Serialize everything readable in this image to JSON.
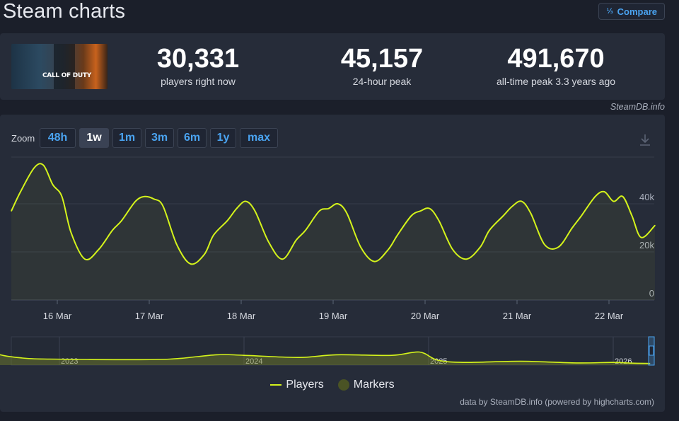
{
  "page": {
    "title": "Steam charts"
  },
  "compare": {
    "icon": "⅓",
    "label": "Compare"
  },
  "game": {
    "logo_text": "CALL OF DUTY",
    "logo_icon": "game-cover-image"
  },
  "stats": [
    {
      "value": "30,331",
      "label": "players right now"
    },
    {
      "value": "45,157",
      "label": "24-hour peak"
    },
    {
      "value": "491,670",
      "label": "all-time peak 3.3 years ago"
    }
  ],
  "attribution": "SteamDB.info",
  "zoom": {
    "label": "Zoom",
    "options": [
      "48h",
      "1w",
      "1m",
      "3m",
      "6m",
      "1y",
      "max"
    ],
    "selected": "1w"
  },
  "legend": {
    "players": "Players",
    "markers": "Markers"
  },
  "credits": "data by SteamDB.info (powered by highcharts.com)",
  "colors": {
    "line": "#d4f31b",
    "accent": "#4aa3f0",
    "marker": "#4a5324"
  },
  "chart_data": [
    {
      "type": "line",
      "title": "",
      "x_axis": {
        "categories": [
          "16 Mar",
          "17 Mar",
          "18 Mar",
          "19 Mar",
          "20 Mar",
          "21 Mar",
          "22 Mar"
        ]
      },
      "y_axis": {
        "ticks": [
          "0",
          "20k",
          "40k"
        ],
        "tick_values": [
          0,
          20000,
          40000
        ],
        "range": [
          0,
          60000
        ],
        "position": "right"
      },
      "grid": true,
      "series": [
        {
          "name": "Players",
          "x_day": [
            15.5,
            15.6,
            15.75,
            15.85,
            15.95,
            16.05,
            16.15,
            16.3,
            16.45,
            16.6,
            16.7,
            16.85,
            16.95,
            17.05,
            17.15,
            17.3,
            17.45,
            17.6,
            17.7,
            17.85,
            17.95,
            18.05,
            18.15,
            18.3,
            18.45,
            18.6,
            18.7,
            18.85,
            18.95,
            19.05,
            19.15,
            19.3,
            19.45,
            19.6,
            19.7,
            19.85,
            19.95,
            20.05,
            20.15,
            20.3,
            20.45,
            20.6,
            20.7,
            20.85,
            20.95,
            21.05,
            21.15,
            21.3,
            21.45,
            21.6,
            21.7,
            21.85,
            21.95,
            22.05,
            22.15,
            22.25,
            22.35,
            22.5
          ],
          "values": [
            37000,
            45000,
            55000,
            56000,
            48000,
            43000,
            28000,
            17000,
            21000,
            29000,
            33000,
            41000,
            43000,
            42000,
            39000,
            23000,
            15000,
            19000,
            27000,
            33000,
            38000,
            41000,
            37000,
            24000,
            17000,
            25000,
            29000,
            37000,
            38000,
            40000,
            36000,
            22000,
            16000,
            21000,
            27000,
            35000,
            37000,
            38000,
            33000,
            21000,
            17000,
            22000,
            29000,
            35000,
            39000,
            41000,
            36000,
            23000,
            22000,
            30000,
            35000,
            43000,
            45000,
            41000,
            43000,
            35000,
            26000,
            31000
          ]
        }
      ]
    },
    {
      "type": "area",
      "title": "",
      "x_axis": {
        "labels": [
          "2023",
          "2024",
          "2025",
          "2026"
        ],
        "label_years": [
          2023,
          2024,
          2025,
          2026
        ]
      },
      "series": [
        {
          "name": "Players",
          "x_year": [
            2022.2,
            2022.35,
            2022.5,
            2022.65,
            2022.8,
            2022.95,
            2023.3,
            2023.6,
            2023.85,
            2024.0,
            2024.3,
            2024.5,
            2024.8,
            2024.95,
            2025.05,
            2025.2,
            2025.5,
            2025.8,
            2026.0,
            2026.1,
            2026.2
          ],
          "values": [
            80000,
            180000,
            240000,
            110000,
            65000,
            55000,
            50000,
            55000,
            95000,
            90000,
            70000,
            95000,
            90000,
            120000,
            45000,
            25000,
            35000,
            20000,
            25000,
            18000,
            15000
          ]
        }
      ]
    }
  ]
}
